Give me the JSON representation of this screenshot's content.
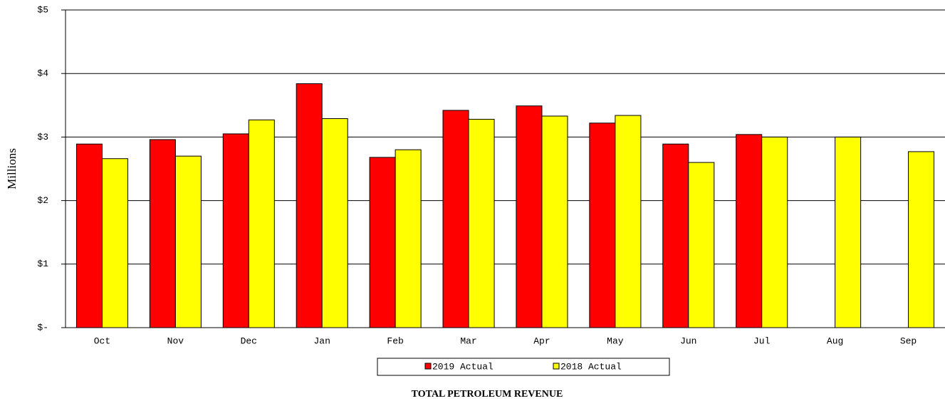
{
  "chart_data": {
    "type": "bar",
    "title": "TOTAL PETROLEUM REVENUE",
    "y_label": "Millions",
    "categories": [
      "Oct",
      "Nov",
      "Dec",
      "Jan",
      "Feb",
      "Mar",
      "Apr",
      "May",
      "Jun",
      "Jul",
      "Aug",
      "Sep"
    ],
    "series": [
      {
        "name": "2019 Actual",
        "color": "#ff0000",
        "values": [
          2.89,
          2.96,
          3.05,
          3.84,
          2.68,
          3.42,
          3.49,
          3.22,
          2.89,
          3.04,
          null,
          null
        ]
      },
      {
        "name": "2018 Actual",
        "color": "#ffff00",
        "values": [
          2.66,
          2.7,
          3.27,
          3.29,
          2.8,
          3.28,
          3.33,
          3.34,
          2.6,
          3.0,
          3.0,
          2.77
        ]
      }
    ],
    "ylim": [
      0,
      5
    ],
    "yticks": [
      {
        "value": 0,
        "label": "$-"
      },
      {
        "value": 1,
        "label": "$1"
      },
      {
        "value": 2,
        "label": "$2"
      },
      {
        "value": 3,
        "label": "$3"
      },
      {
        "value": 4,
        "label": "$4"
      },
      {
        "value": 5,
        "label": "$5"
      }
    ],
    "grid": true,
    "legend": "bottom"
  }
}
